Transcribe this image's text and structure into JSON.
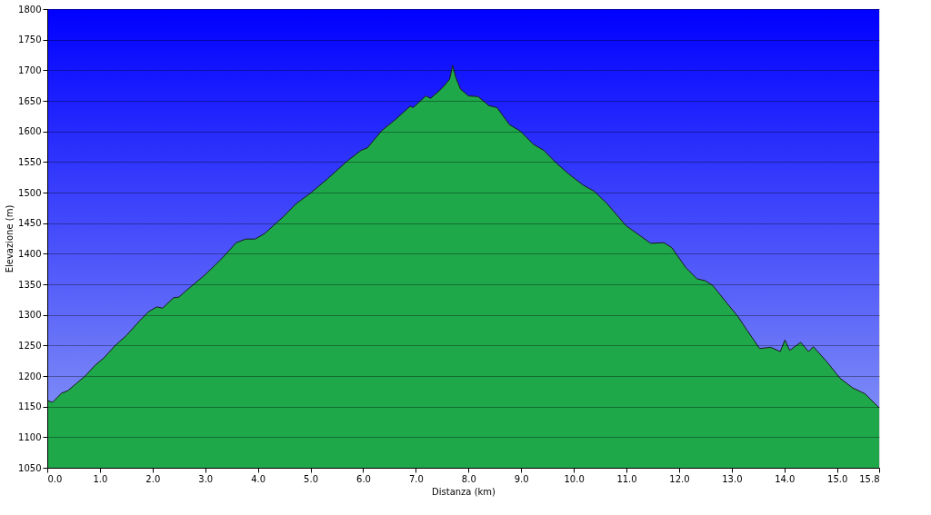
{
  "chart_data": {
    "type": "area",
    "xlabel": "Distanza  (km)",
    "ylabel": "Elevazione (m)",
    "x": [
      0,
      0.1,
      0.27,
      0.39,
      0.54,
      0.72,
      0.9,
      1.08,
      1.29,
      1.5,
      1.74,
      1.92,
      2.08,
      2.19,
      2.4,
      2.5,
      2.63,
      2.99,
      3.29,
      3.59,
      3.77,
      3.95,
      4.13,
      4.49,
      4.73,
      5.0,
      5.33,
      5.69,
      5.96,
      6.08,
      6.35,
      6.62,
      6.89,
      6.95,
      7.19,
      7.28,
      7.49,
      7.64,
      7.7,
      7.76,
      7.85,
      8.0,
      8.18,
      8.39,
      8.54,
      8.78,
      8.99,
      9.23,
      9.43,
      9.67,
      9.91,
      10.18,
      10.39,
      10.63,
      10.99,
      11.46,
      11.71,
      11.86,
      12.13,
      12.34,
      12.49,
      12.64,
      12.91,
      13.12,
      13.29,
      13.53,
      13.74,
      13.92,
      14.01,
      14.1,
      14.31,
      14.46,
      14.55,
      14.82,
      15.05,
      15.29,
      15.53,
      15.8
    ],
    "series": [
      {
        "color": "#1fa84a",
        "values": [
          1160,
          1157,
          1172,
          1176,
          1187,
          1200,
          1217,
          1230,
          1250,
          1266,
          1289,
          1305,
          1313,
          1311,
          1328,
          1329,
          1339,
          1365,
          1390,
          1418,
          1424,
          1424,
          1433,
          1461,
          1482,
          1499,
          1523,
          1551,
          1569,
          1573,
          1601,
          1620,
          1641,
          1639,
          1658,
          1654,
          1670,
          1685,
          1708,
          1688,
          1669,
          1658,
          1657,
          1642,
          1639,
          1611,
          1600,
          1579,
          1569,
          1548,
          1530,
          1512,
          1502,
          1482,
          1446,
          1417,
          1418,
          1410,
          1377,
          1359,
          1356,
          1348,
          1319,
          1297,
          1275,
          1245,
          1247,
          1240,
          1259,
          1242,
          1255,
          1240,
          1248,
          1222,
          1197,
          1181,
          1171,
          1148
        ]
      }
    ],
    "xlim": [
      0,
      15.8
    ],
    "xticks": [
      {
        "value": 0,
        "label": "0.0"
      },
      {
        "value": 1,
        "label": "1.0"
      },
      {
        "value": 2,
        "label": "2.0"
      },
      {
        "value": 3,
        "label": "3.0"
      },
      {
        "value": 4,
        "label": "4.0"
      },
      {
        "value": 5,
        "label": "5.0"
      },
      {
        "value": 6,
        "label": "6.0"
      },
      {
        "value": 7,
        "label": "7.0"
      },
      {
        "value": 8,
        "label": "8.0"
      },
      {
        "value": 9,
        "label": "9.0"
      },
      {
        "value": 10,
        "label": "10.0"
      },
      {
        "value": 11,
        "label": "11.0"
      },
      {
        "value": 12,
        "label": "12.0"
      },
      {
        "value": 13,
        "label": "13.0"
      },
      {
        "value": 14,
        "label": "14.0"
      },
      {
        "value": 15,
        "label": "15.0"
      },
      15.8
    ],
    "ylim": [
      1050,
      1800
    ],
    "yticks": [
      1050,
      1100,
      1150,
      1200,
      1250,
      1300,
      1350,
      1400,
      1450,
      1500,
      1550,
      1600,
      1650,
      1700,
      1750,
      1800
    ],
    "grid": "y"
  }
}
